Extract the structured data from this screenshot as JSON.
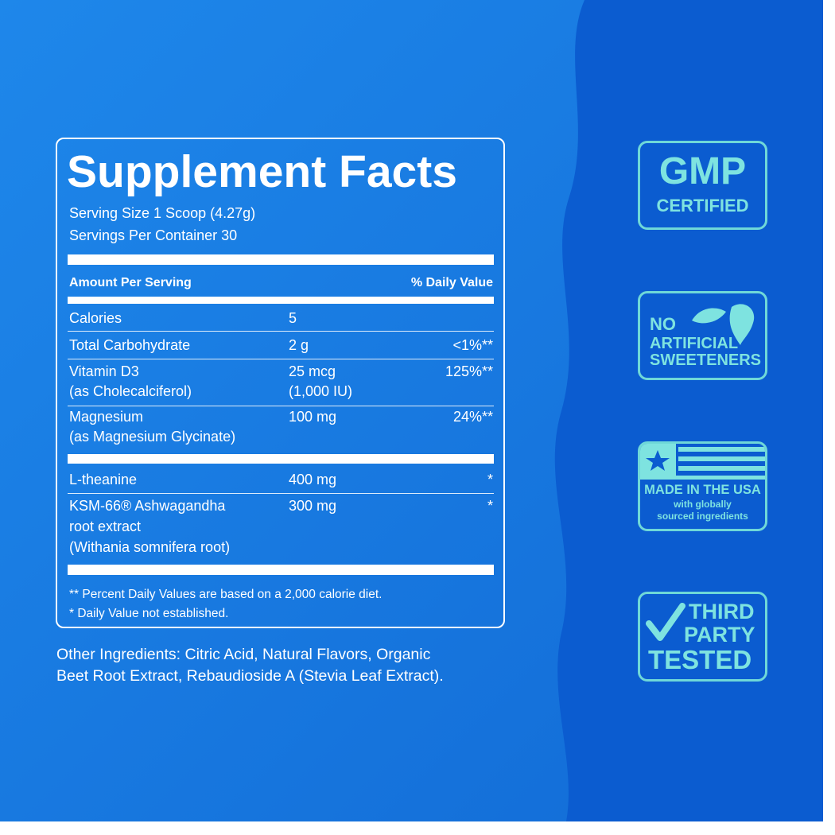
{
  "panel": {
    "title": "Supplement Facts",
    "serving_size": "Serving Size 1 Scoop (4.27g)",
    "servings_per_container": "Servings Per Container 30",
    "header": {
      "amount": "Amount Per Serving",
      "daily_value": "% Daily Value"
    },
    "rows": [
      {
        "name": [
          "Calories"
        ],
        "amount": [
          "5"
        ]
      },
      {
        "name": [
          "Total Carbohydrate"
        ],
        "amount": [
          "2 g"
        ],
        "daily_value": "<1%**"
      },
      {
        "name": [
          "Vitamin D3",
          "(as Cholecalciferol)"
        ],
        "amount": [
          "25 mcg",
          "(1,000 IU)"
        ],
        "daily_value": "125%**"
      },
      {
        "name": [
          "Magnesium",
          "(as Magnesium Glycinate)"
        ],
        "amount": [
          "100 mg"
        ],
        "daily_value": "24%**"
      },
      {
        "name": [
          "L-theanine"
        ],
        "amount": [
          "400 mg"
        ],
        "daily_value": "*"
      },
      {
        "name": [
          "KSM-66® Ashwagandha",
          "root extract",
          "(Withania somnifera root)"
        ],
        "amount": [
          "300 mg"
        ],
        "daily_value": "*"
      }
    ],
    "footnotes": [
      "** Percent Daily Values are based on a 2,000 calorie diet.",
      "* Daily Value not established."
    ]
  },
  "other_ingredients": [
    "Other Ingredients: Citric Acid, Natural Flavors, Organic",
    "Beet Root Extract, Rebaudioside A (Stevia Leaf Extract)."
  ],
  "badges": [
    [
      "GMP",
      "CERTIFIED"
    ],
    [
      "NO",
      "ARTIFICIAL",
      "SWEETENERS"
    ],
    [
      "MADE IN THE USA",
      "with globally",
      "sourced ingredients"
    ],
    [
      "THIRD",
      "PARTY",
      "TESTED"
    ]
  ]
}
